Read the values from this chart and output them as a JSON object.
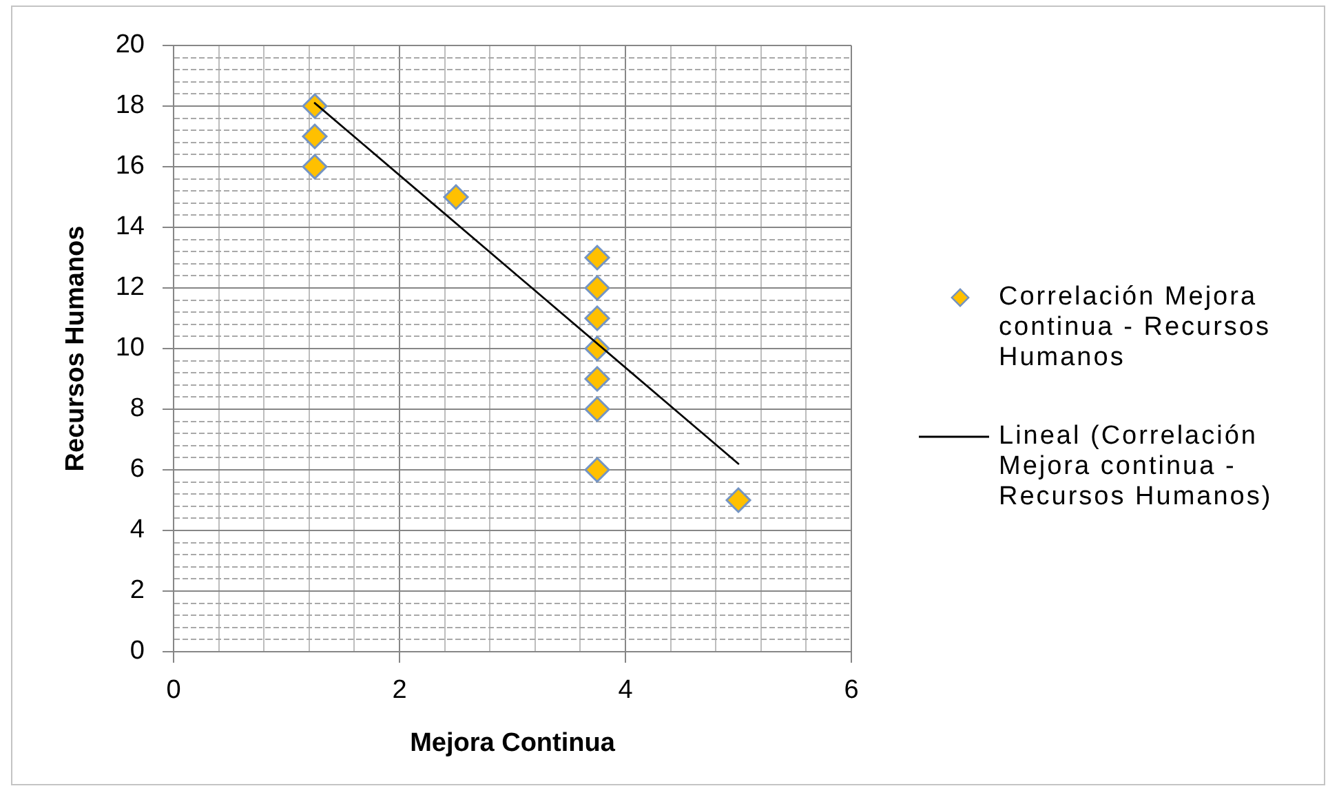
{
  "chart_data": {
    "type": "scatter",
    "xlabel": "Mejora Continua",
    "ylabel": "Recursos Humanos",
    "xlim": [
      0,
      6
    ],
    "xticks": [
      0,
      {
        "value": 0.4,
        "label": null
      },
      {
        "value": 0.8,
        "label": null
      },
      {
        "value": 1.2,
        "label": null
      },
      {
        "value": 1.6,
        "label": null
      },
      2,
      {
        "value": 2.4,
        "label": null
      },
      {
        "value": 2.8,
        "label": null
      },
      {
        "value": 3.2,
        "label": null
      },
      {
        "value": 3.6,
        "label": null
      },
      4,
      {
        "value": 4.4,
        "label": null
      },
      {
        "value": 4.8,
        "label": null
      },
      {
        "value": 5.2,
        "label": null
      },
      {
        "value": 5.6,
        "label": null
      },
      6
    ],
    "ylim": [
      0,
      20
    ],
    "yticks": [
      0,
      {
        "value": 0.4,
        "label": null
      },
      {
        "value": 0.8,
        "label": null
      },
      {
        "value": 1.2,
        "label": null
      },
      {
        "value": 1.6,
        "label": null
      },
      2,
      {
        "value": 2.4,
        "label": null
      },
      {
        "value": 2.8,
        "label": null
      },
      {
        "value": 3.2,
        "label": null
      },
      {
        "value": 3.6,
        "label": null
      },
      4,
      {
        "value": 4.4,
        "label": null
      },
      {
        "value": 4.8,
        "label": null
      },
      {
        "value": 5.2,
        "label": null
      },
      {
        "value": 5.6,
        "label": null
      },
      6,
      {
        "value": 6.4,
        "label": null
      },
      {
        "value": 6.8,
        "label": null
      },
      {
        "value": 7.2,
        "label": null
      },
      {
        "value": 7.6,
        "label": null
      },
      8,
      {
        "value": 8.4,
        "label": null
      },
      {
        "value": 8.8,
        "label": null
      },
      {
        "value": 9.2,
        "label": null
      },
      {
        "value": 9.6,
        "label": null
      },
      10,
      {
        "value": 10.4,
        "label": null
      },
      {
        "value": 10.8,
        "label": null
      },
      {
        "value": 11.2,
        "label": null
      },
      {
        "value": 11.6,
        "label": null
      },
      12,
      {
        "value": 12.4,
        "label": null
      },
      {
        "value": 12.8,
        "label": null
      },
      {
        "value": 13.2,
        "label": null
      },
      {
        "value": 13.6,
        "label": null
      },
      14,
      {
        "value": 14.4,
        "label": null
      },
      {
        "value": 14.8,
        "label": null
      },
      {
        "value": 15.2,
        "label": null
      },
      {
        "value": 15.6,
        "label": null
      },
      16,
      {
        "value": 16.4,
        "label": null
      },
      {
        "value": 16.8,
        "label": null
      },
      {
        "value": 17.2,
        "label": null
      },
      {
        "value": 17.6,
        "label": null
      },
      18,
      {
        "value": 18.4,
        "label": null
      },
      {
        "value": 18.8,
        "label": null
      },
      {
        "value": 19.2,
        "label": null
      },
      {
        "value": 19.6,
        "label": null
      },
      20
    ],
    "grid": true,
    "legend": "right",
    "marker": "diamond",
    "series": [
      {
        "name": "Correlación Mejora continua - Recursos Humanos",
        "color": "#ffc000",
        "x": [
          1.25,
          1.25,
          1.25,
          2.5,
          3.75,
          3.75,
          3.75,
          3.75,
          3.75,
          3.75,
          3.75,
          5
        ],
        "values": [
          18,
          17,
          16,
          15,
          13,
          12,
          11,
          10,
          9,
          8,
          6,
          5
        ]
      },
      {
        "name": "Lineal (Correlación Mejora continua - Recursos Humanos)",
        "type": "line",
        "color": "#000000",
        "marker": "none",
        "line_style": "solid",
        "x": [
          1.25,
          5
        ],
        "values": [
          18.1,
          6.2
        ]
      }
    ]
  }
}
